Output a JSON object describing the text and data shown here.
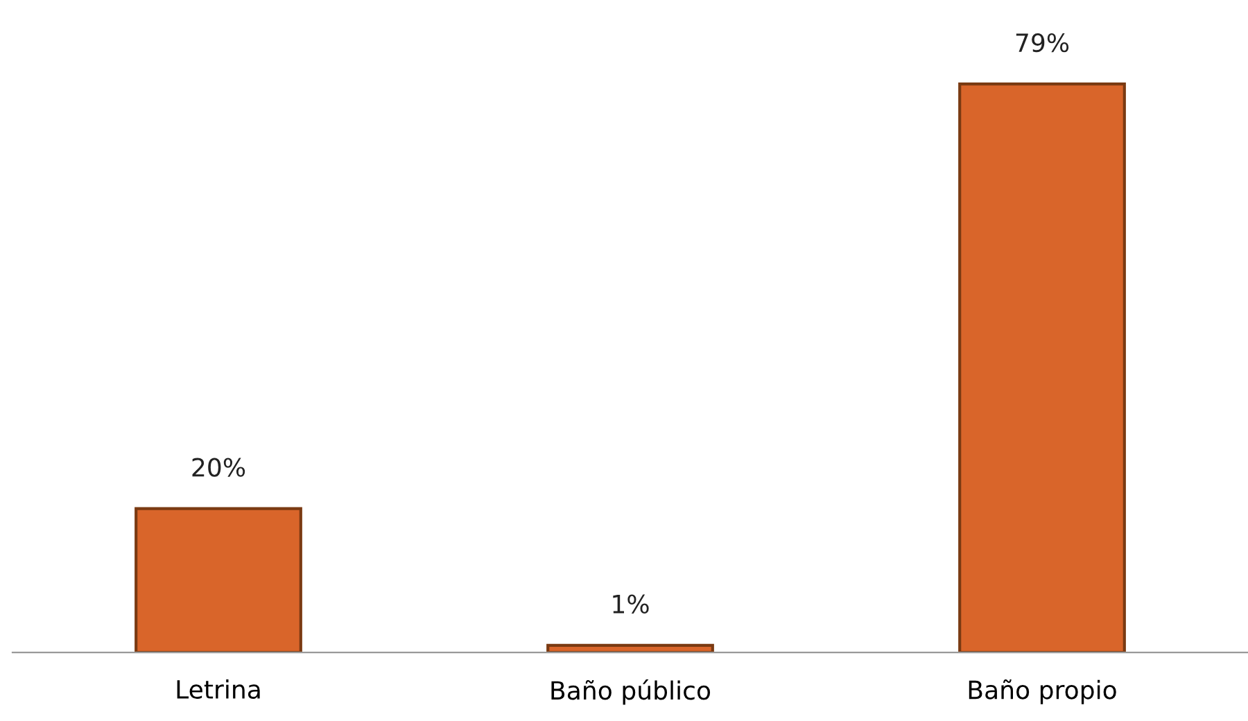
{
  "chart_data": {
    "type": "bar",
    "categories": [
      "Letrina",
      "Baño público",
      "Baño propio"
    ],
    "values": [
      20,
      1,
      79
    ],
    "value_labels": [
      "20%",
      "1%",
      "79%"
    ],
    "color": "#d9652a",
    "grid": false,
    "legend": false
  }
}
